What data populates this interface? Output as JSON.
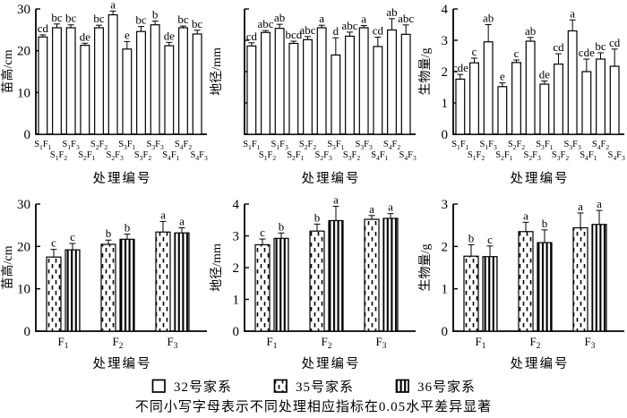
{
  "page": {
    "background": "#ffffff",
    "ink": "#000000"
  },
  "footnote": "不同小写字母表示不同处理相应指标在0.05水平差异显著",
  "legend": {
    "items": [
      {
        "label": "32号家系",
        "pattern": "plain"
      },
      {
        "label": "35号家系",
        "pattern": "dots"
      },
      {
        "label": "36号家系",
        "pattern": "stripes"
      }
    ]
  },
  "chart_data": [
    {
      "type": "bar",
      "position": "top-left",
      "ylabel": "苗高/cm",
      "xlabel": "处理编号",
      "ylim": [
        0,
        30
      ],
      "yticks": [
        0,
        10,
        20,
        30
      ],
      "show_ytick_labels": true,
      "stagger_xlabels": true,
      "grid": false,
      "categories": [
        "S1F1",
        "S1F2",
        "S1F3",
        "S2F1",
        "S2F2",
        "S2F3",
        "S3F1",
        "S3F2",
        "S3F3",
        "S4F1",
        "S4F2",
        "S4F3"
      ],
      "series": [
        {
          "name": "处理",
          "pattern": "plain",
          "values": [
            23.3,
            25.5,
            25.5,
            21.3,
            25.5,
            28.6,
            20.4,
            24.6,
            26.2,
            21.2,
            25.5,
            24.0
          ],
          "errors": [
            0.5,
            0.9,
            0.7,
            0.5,
            0.6,
            0.9,
            1.8,
            1.2,
            0.9,
            0.8,
            0.4,
            0.9
          ],
          "letters": [
            "cd",
            "bc",
            "bc",
            "de",
            "bc",
            "a",
            "e",
            "bc",
            "b",
            "de",
            "bc",
            "bc"
          ]
        }
      ]
    },
    {
      "type": "bar",
      "position": "top-middle",
      "ylabel": "地径/mm",
      "xlabel": "处理编号",
      "ylim": [
        0,
        4
      ],
      "yticks": [
        0,
        1,
        2,
        3,
        4
      ],
      "show_ytick_labels": false,
      "stagger_xlabels": true,
      "grid": false,
      "categories": [
        "S1F1",
        "S1F2",
        "S1F3",
        "S2F1",
        "S2F2",
        "S2F3",
        "S3F1",
        "S3F2",
        "S3F3",
        "S4F1",
        "S4F2",
        "S4F3"
      ],
      "series": [
        {
          "name": "处理",
          "pattern": "plain",
          "values": [
            2.82,
            3.25,
            3.38,
            2.9,
            3.02,
            3.4,
            2.53,
            3.13,
            3.4,
            2.8,
            3.33,
            3.19
          ],
          "errors": [
            0.1,
            0.06,
            0.13,
            0.07,
            0.1,
            0.08,
            0.55,
            0.13,
            0.07,
            0.3,
            0.36,
            0.3
          ],
          "letters": [
            "cd",
            "abc",
            "ab",
            "bcd",
            "abc",
            "a",
            "d",
            "abc",
            "a",
            "cd",
            "ab",
            "abc"
          ]
        }
      ]
    },
    {
      "type": "bar",
      "position": "top-right",
      "ylabel": "生物量/g",
      "xlabel": "处理编号",
      "ylim": [
        0,
        4
      ],
      "yticks": [
        0,
        1,
        2,
        3,
        4
      ],
      "show_ytick_labels": true,
      "stagger_xlabels": true,
      "grid": false,
      "categories": [
        "S1F1",
        "S1F2",
        "S1F3",
        "S2F1",
        "S2F2",
        "S2F3",
        "S3F1",
        "S3F2",
        "S3F3",
        "S4F1",
        "S4F2",
        "S4F3"
      ],
      "series": [
        {
          "name": "处理",
          "pattern": "plain",
          "values": [
            1.76,
            2.28,
            2.95,
            1.52,
            2.29,
            2.97,
            1.6,
            2.24,
            3.3,
            2.0,
            2.4,
            2.17
          ],
          "errors": [
            0.15,
            0.15,
            0.55,
            0.12,
            0.08,
            0.12,
            0.1,
            0.33,
            0.35,
            0.4,
            0.2,
            0.55
          ],
          "letters": [
            "cde",
            "c",
            "ab",
            "e",
            "c",
            "ab",
            "de",
            "cd",
            "a",
            "cde",
            "bc",
            "cd"
          ]
        }
      ]
    },
    {
      "type": "bar",
      "position": "bottom-left",
      "ylabel": "苗高/cm",
      "xlabel": "处理编号",
      "ylim": [
        0,
        30
      ],
      "yticks": [
        0,
        10,
        20,
        30
      ],
      "show_ytick_labels": true,
      "stagger_xlabels": false,
      "grid": false,
      "categories": [
        "F1",
        "F2",
        "F3"
      ],
      "series": [
        {
          "name": "35号家系",
          "pattern": "dots",
          "values": [
            17.5,
            20.5,
            23.4
          ],
          "errors": [
            1.8,
            1.0,
            2.5
          ],
          "letters": [
            "c",
            "b",
            "a"
          ]
        },
        {
          "name": "36号家系",
          "pattern": "stripes",
          "values": [
            19.2,
            21.7,
            23.2
          ],
          "errors": [
            1.5,
            1.2,
            1.2
          ],
          "letters": [
            "c",
            "b",
            "a"
          ]
        }
      ]
    },
    {
      "type": "bar",
      "position": "bottom-middle",
      "ylabel": "地径/mm",
      "xlabel": "处理编号",
      "ylim": [
        0,
        4
      ],
      "yticks": [
        0,
        1,
        2,
        3,
        4
      ],
      "show_ytick_labels": true,
      "stagger_xlabels": false,
      "grid": false,
      "categories": [
        "F1",
        "F2",
        "F3"
      ],
      "series": [
        {
          "name": "35号家系",
          "pattern": "dots",
          "values": [
            2.72,
            3.15,
            3.52
          ],
          "errors": [
            0.18,
            0.22,
            0.12
          ],
          "letters": [
            "c",
            "b",
            "a"
          ]
        },
        {
          "name": "36号家系",
          "pattern": "stripes",
          "values": [
            2.92,
            3.48,
            3.55
          ],
          "errors": [
            0.17,
            0.45,
            0.15
          ],
          "letters": [
            "b",
            "a",
            "a"
          ]
        }
      ]
    },
    {
      "type": "bar",
      "position": "bottom-right",
      "ylabel": "生物量/g",
      "xlabel": "处理编号",
      "ylim": [
        0,
        3
      ],
      "yticks": [
        0,
        1,
        2,
        3
      ],
      "show_ytick_labels": true,
      "stagger_xlabels": false,
      "grid": false,
      "categories": [
        "F1",
        "F2",
        "F3"
      ],
      "series": [
        {
          "name": "35号家系",
          "pattern": "dots",
          "values": [
            1.77,
            2.35,
            2.44
          ],
          "errors": [
            0.27,
            0.22,
            0.35
          ],
          "letters": [
            "b",
            "a",
            "a"
          ]
        },
        {
          "name": "36号家系",
          "pattern": "stripes",
          "values": [
            1.76,
            2.09,
            2.52
          ],
          "errors": [
            0.25,
            0.3,
            0.33
          ],
          "letters": [
            "c",
            "b",
            "a"
          ]
        }
      ]
    }
  ]
}
